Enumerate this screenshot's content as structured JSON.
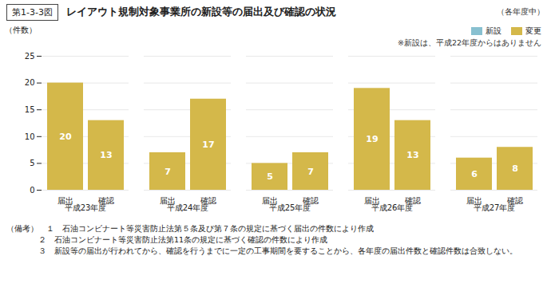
{
  "chart_data": {
    "type": "bar",
    "title": "レイアウト規制対象事業所の新設等の届出及び確認の状況",
    "ylabel": "（件数）",
    "annotations": [
      "第1-3-3図",
      "（各年度中）",
      "※新設は、平成22年度からはありません",
      "（備考）　１　石油コンビナート等災害防止法第５条及び第７条の規定に基づく届出の件数により作成",
      "　　　　２　石油コンビナート等災害防止法第11条の規定に基づく確認の件数により作成",
      "　　　　３　新設等の届出が行われてから、確認を行うまでに一定の工事期間を要することから、各年度の届出件数と確認件数は合致しない。"
    ],
    "categories": [
      "届出",
      "確認",
      "届出",
      "確認",
      "届出",
      "確認",
      "届出",
      "確認",
      "届出",
      "確認"
    ],
    "groups": [
      "平成23年度",
      "平成24年度",
      "平成25年度",
      "平成26年度",
      "平成27年度"
    ],
    "values": [
      20,
      13,
      7,
      17,
      5,
      7,
      19,
      13,
      6,
      8
    ],
    "color": "#d4b84a",
    "legend_items": [
      {
        "name": "新設",
        "color": "#88c0d0"
      },
      {
        "name": "変更",
        "color": "#d4b84a"
      }
    ],
    "legend": "upper right",
    "ylim": [
      0,
      25
    ],
    "yticks": [
      0,
      5,
      10,
      15,
      20,
      25
    ],
    "grid": true,
    "data_labels": true
  }
}
